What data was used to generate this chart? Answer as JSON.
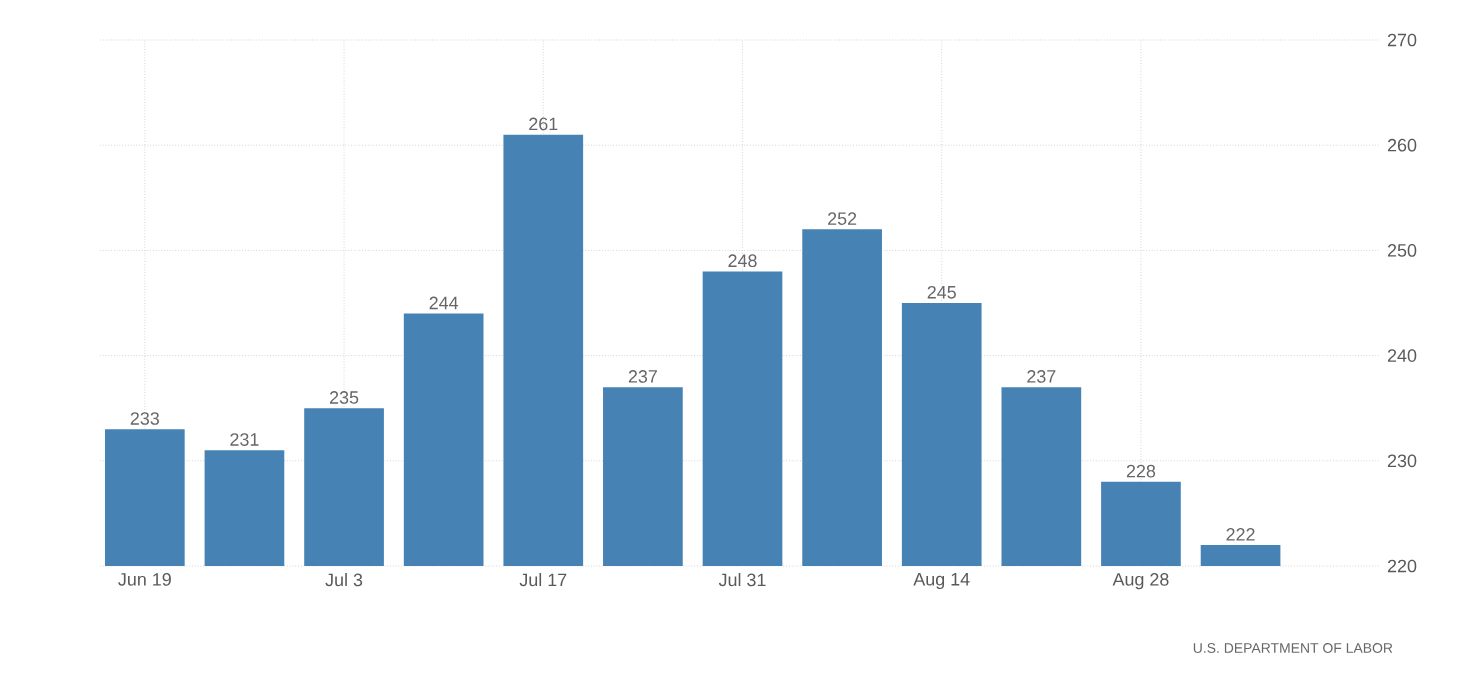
{
  "chart_data": {
    "type": "bar",
    "categories": [
      "Jun 19",
      null,
      "Jul 3",
      null,
      "Jul 17",
      null,
      "Jul 31",
      null,
      "Aug 14",
      null,
      "Aug 28",
      null
    ],
    "values": [
      233,
      231,
      235,
      244,
      261,
      237,
      248,
      252,
      245,
      237,
      228,
      222
    ],
    "color": "#4682b4",
    "ylim": [
      220,
      270
    ],
    "yticks": [
      220,
      230,
      240,
      250,
      260,
      270
    ],
    "grid": true,
    "data_labels": true,
    "annotations": [
      "U.S. DEPARTMENT OF LABOR"
    ]
  }
}
